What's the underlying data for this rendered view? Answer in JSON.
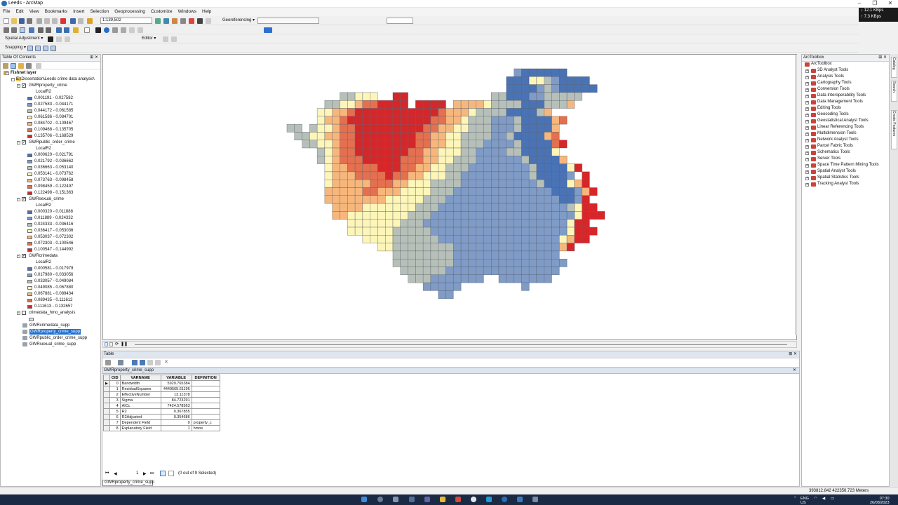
{
  "window": {
    "title": "Leeds - ArcMap"
  },
  "net": {
    "up": "↓ 12.1 KBps",
    "down": "↑ 7.3 KBps"
  },
  "menu": [
    "File",
    "Edit",
    "View",
    "Bookmarks",
    "Insert",
    "Selection",
    "Geoprocessing",
    "Customize",
    "Windows",
    "Help"
  ],
  "toolbar": {
    "scale": "1:139,502",
    "georeferencing": "Georeferencing ▾",
    "spatial_adjustment": "Spatial Adjustment ▾",
    "editor": "Editor ▾",
    "snapping": "Snapping ▾"
  },
  "toc": {
    "title": "Table Of Contents",
    "root": "Fishnet layer",
    "folder": "E:\\Dissertation\\Leeds crime data analysis\\",
    "layers": [
      {
        "name": "GWRproperty_crime",
        "field": "LocalR2",
        "classes": [
          "0.001191 - 0.027582",
          "0.027583 - 0.044171",
          "0.044172 - 0.061585",
          "0.061586 - 0.084701",
          "0.084702 - 0.109467",
          "0.109468 - 0.135705",
          "0.135706 - 0.168529"
        ]
      },
      {
        "name": "GWRpublic_order_crime",
        "field": "LocalR2",
        "classes": [
          "0.000620 - 0.021791",
          "0.021792 - 0.036662",
          "0.036663 - 0.053140",
          "0.053141 - 0.073762",
          "0.073763 - 0.098458",
          "0.098459 - 0.122497",
          "0.122498 - 0.151363"
        ]
      },
      {
        "name": "GWRsexual_crime",
        "field": "LocalR2",
        "classes": [
          "0.000320 - 0.011888",
          "0.011889 - 0.024332",
          "0.024333 - 0.036416",
          "0.036417 - 0.053036",
          "0.053037 - 0.072302",
          "0.072303 - 0.100546",
          "0.100547 - 0.144992"
        ]
      },
      {
        "name": "GWRcrimedata",
        "field": "LocalR2",
        "classes": [
          "0.000581 - 0.017979",
          "0.017980 - 0.033056",
          "0.033057 - 0.049084",
          "0.049085 - 0.067880",
          "0.067881 - 0.089434",
          "0.089435 - 0.111612",
          "0.111613 - 0.132657"
        ]
      }
    ],
    "extra_layer": "crimedata_hmo_analysis",
    "tables": [
      "GWRcrimedata_supp",
      "GWRproperty_crime_supp",
      "GWRpublic_order_crime_supp",
      "GWRsexual_crime_supp"
    ],
    "selected_table": 1
  },
  "class_colors": [
    "#4a73b5",
    "#7f9bc6",
    "#b7c0b8",
    "#fdf6b8",
    "#f7b77c",
    "#e4704f",
    "#d5272a"
  ],
  "toolbox": {
    "title": "ArcToolbox",
    "root": "ArcToolbox",
    "items": [
      "3D Analyst Tools",
      "Analysis Tools",
      "Cartography Tools",
      "Conversion Tools",
      "Data Interoperability Tools",
      "Data Management Tools",
      "Editing Tools",
      "Geocoding Tools",
      "Geostatistical Analyst Tools",
      "Linear Referencing Tools",
      "Multidimension Tools",
      "Network Analyst Tools",
      "Parcel Fabric Tools",
      "Schematics Tools",
      "Server Tools",
      "Space Time Pattern Mining Tools",
      "Spatial Analyst Tools",
      "Spatial Statistics Tools",
      "Tracking Analyst Tools"
    ],
    "side_tabs": [
      "Catalog",
      "Search",
      "Create Features"
    ]
  },
  "table_window": {
    "title": "Table",
    "tab_title": "GWRproperty_crime_supp",
    "columns": [
      "OID",
      "VARNAME",
      "VARIABLE",
      "DEFINITION"
    ],
    "rows": [
      [
        "0",
        "Bandwidth",
        "5929.765384",
        ""
      ],
      [
        "1",
        "ResidualSquares",
        "4449565.61196",
        ""
      ],
      [
        "2",
        "EffectiveNumber",
        "13.11378",
        ""
      ],
      [
        "3",
        "Sigma",
        "84.723291",
        ""
      ],
      [
        "4",
        "AICc",
        "7424.578563",
        ""
      ],
      [
        "5",
        "R2",
        "0.367855",
        ""
      ],
      [
        "6",
        "R2Adjusted",
        "0.354686",
        ""
      ],
      [
        "7",
        "Dependent Field",
        "0",
        "property_c"
      ],
      [
        "8",
        "Explanatory Field",
        "1",
        "hmos"
      ]
    ],
    "record": "1",
    "selection_status": "(0 out of 9 Selected)",
    "bottom_tab": "GWRproperty_crime_supp"
  },
  "status": {
    "coords": "393812.842  422356.723 Meters"
  },
  "taskbar": {
    "lang1": "ENG",
    "lang2": "US",
    "time": "07:30",
    "date": "26/08/2023"
  }
}
